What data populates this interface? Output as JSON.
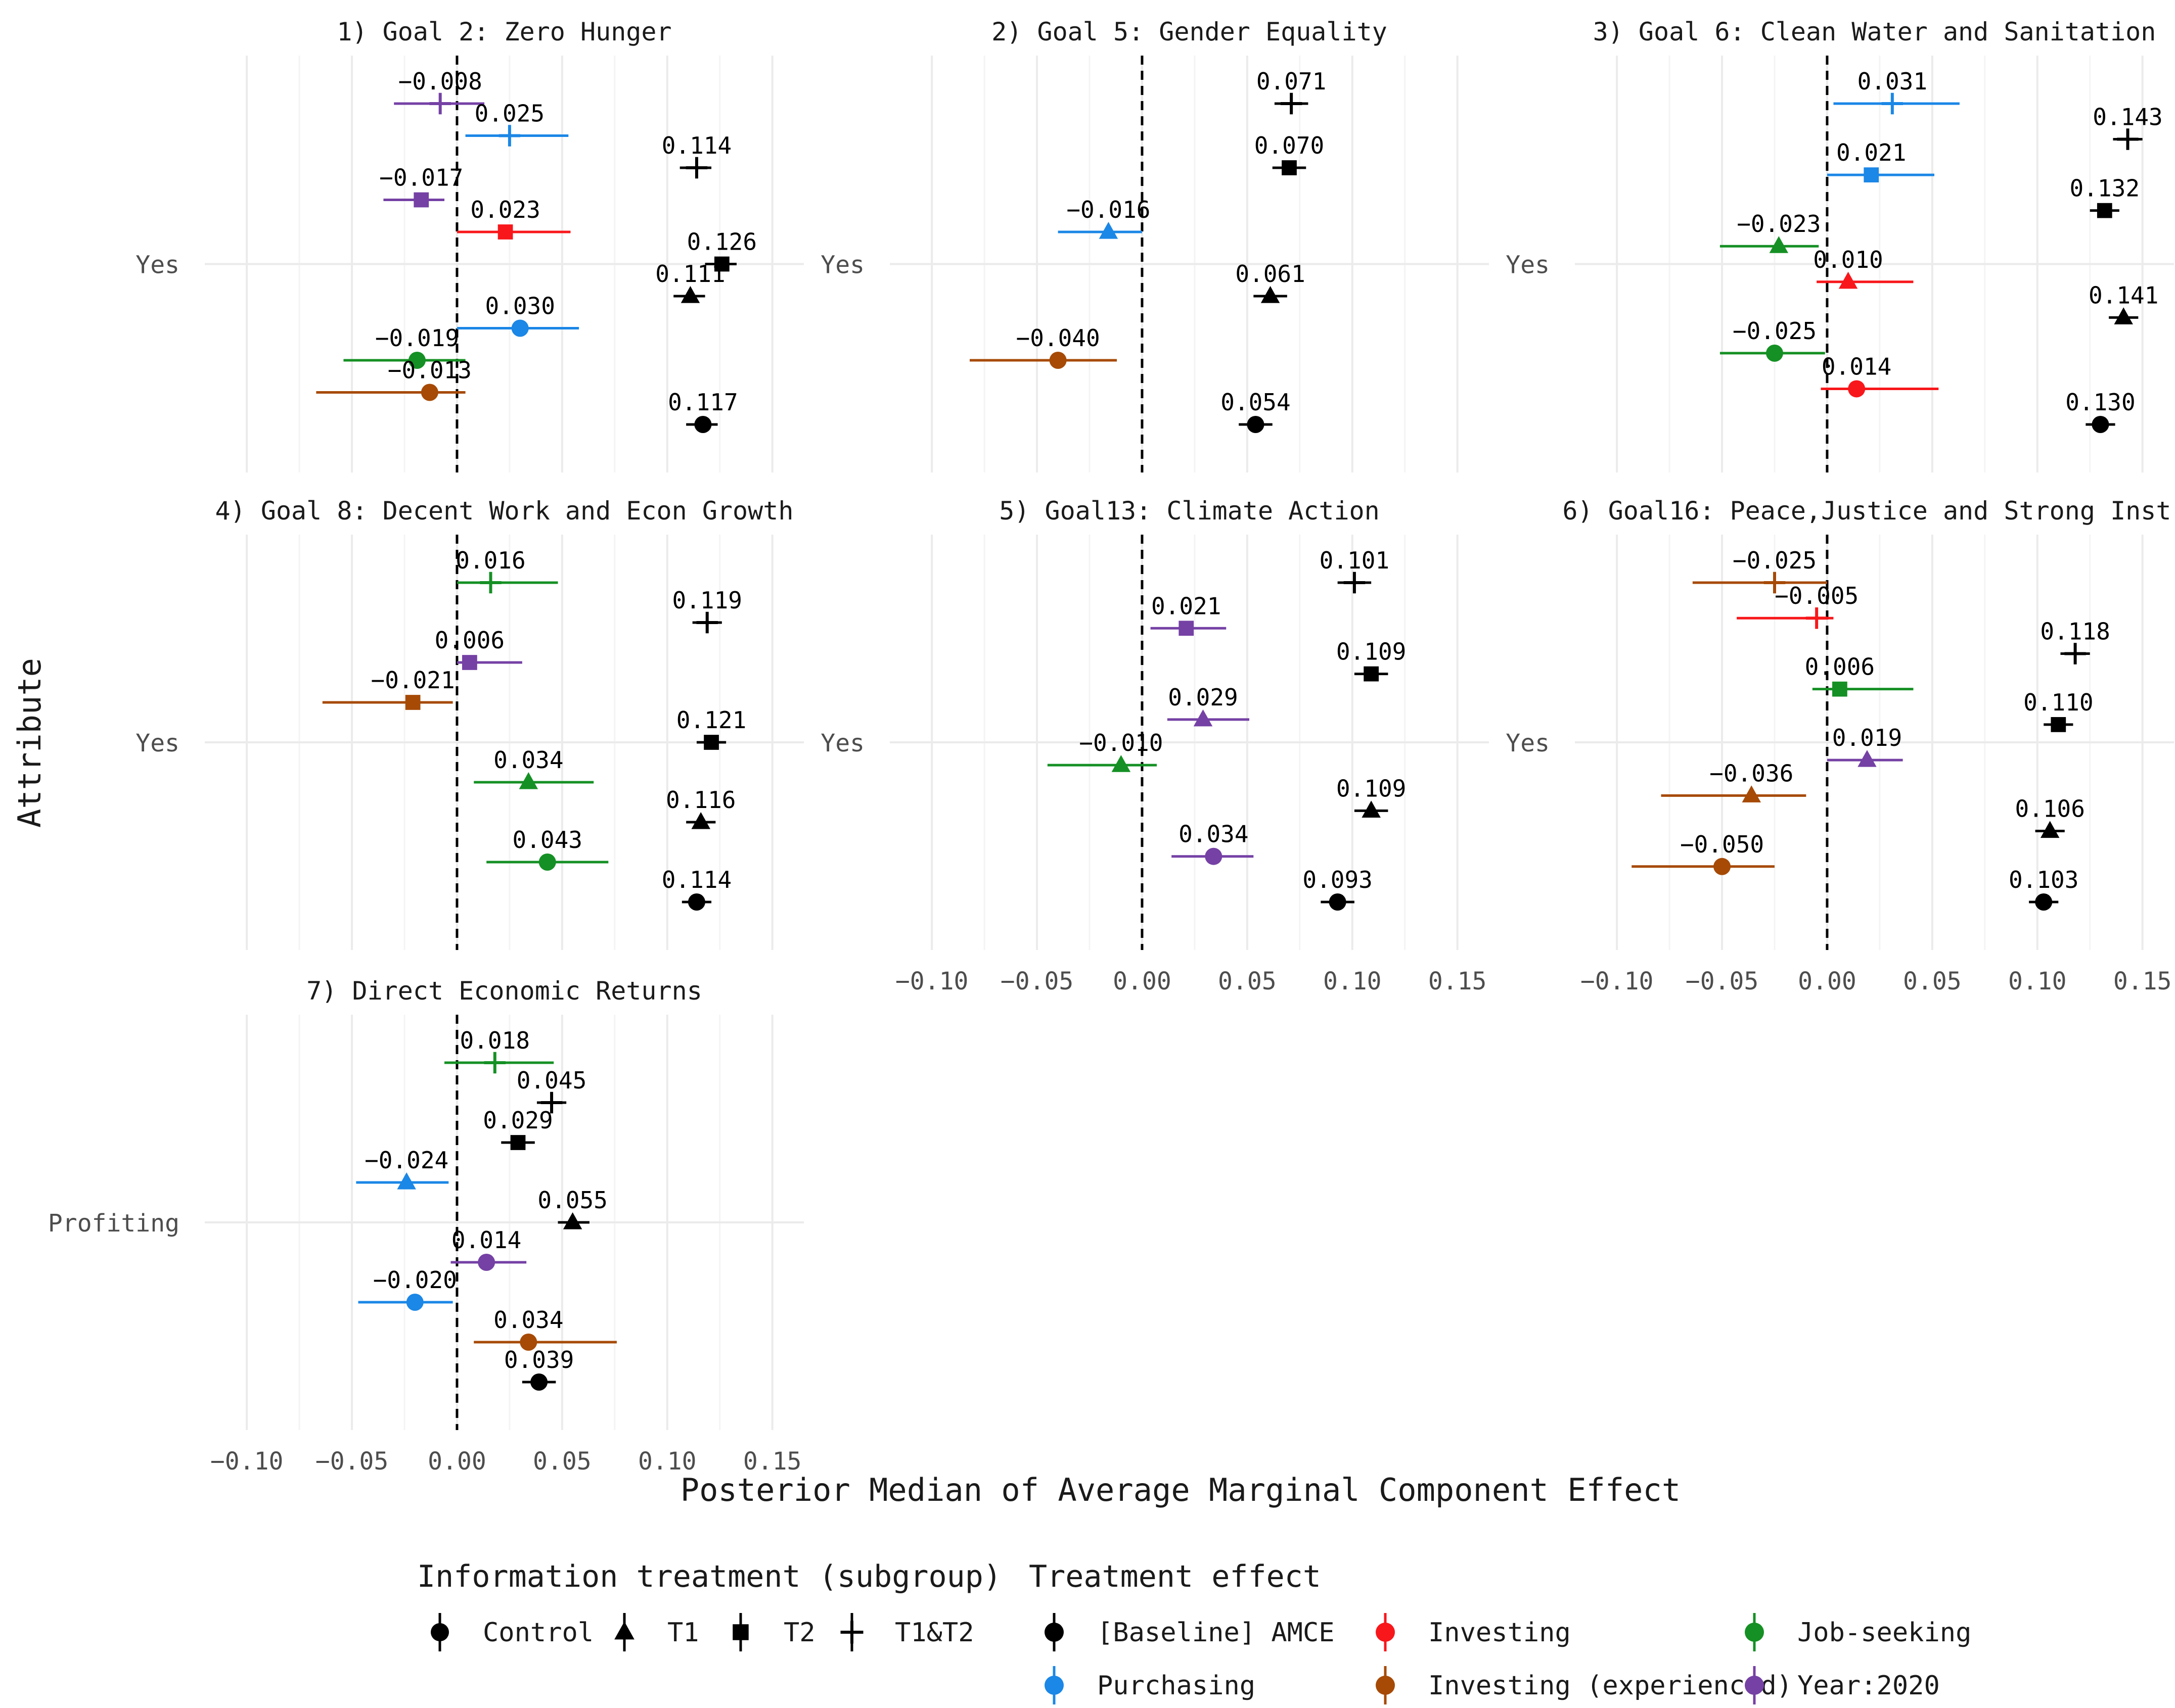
{
  "figure": {
    "ylabel": "Attribute",
    "xlabel": "Posterior Median of Average Marginal Component Effect",
    "xlim": [
      -0.12,
      0.165
    ],
    "xticks": [
      -0.1,
      -0.05,
      0.0,
      0.05,
      0.1,
      0.15
    ],
    "xtick_labels": [
      "−0.10",
      "−0.05",
      "0.00",
      "0.05",
      "0.10",
      "0.15"
    ]
  },
  "legend": {
    "shape_title": "Information treatment (subgroup)",
    "shape_items": [
      {
        "shape": "circle",
        "label": "Control"
      },
      {
        "shape": "triangle",
        "label": "T1"
      },
      {
        "shape": "square",
        "label": "T2"
      },
      {
        "shape": "plus",
        "label": "T1&T2"
      }
    ],
    "color_title": "Treatment effect",
    "color_items": [
      {
        "key": "baseline",
        "label": "[Baseline] AMCE",
        "color": "#000000"
      },
      {
        "key": "investing",
        "label": "Investing",
        "color": "#f8171b"
      },
      {
        "key": "jobseeking",
        "label": "Job-seeking",
        "color": "#159024"
      },
      {
        "key": "purchasing",
        "label": "Purchasing",
        "color": "#1b87e6"
      },
      {
        "key": "invexp",
        "label": "Investing (experienced)",
        "color": "#a64a06"
      },
      {
        "key": "year2020",
        "label": "Year:2020",
        "color": "#7541a5"
      }
    ]
  },
  "chart_data": [
    {
      "type": "scatter",
      "title": "1) Goal 2: Zero Hunger",
      "category": "Yes",
      "points": [
        {
          "group": "year2020",
          "shape": "plus",
          "value": -0.008,
          "label": "−0.008",
          "lo": -0.03,
          "hi": 0.013
        },
        {
          "group": "purchasing",
          "shape": "plus",
          "value": 0.025,
          "label": "0.025",
          "lo": 0.004,
          "hi": 0.053
        },
        {
          "group": "baseline",
          "shape": "plus",
          "value": 0.114,
          "label": "0.114",
          "lo": 0.106,
          "hi": 0.121
        },
        {
          "group": "year2020",
          "shape": "square",
          "value": -0.017,
          "label": "−0.017",
          "lo": -0.035,
          "hi": -0.006
        },
        {
          "group": "investing",
          "shape": "square",
          "value": 0.023,
          "label": "0.023",
          "lo": 0.0,
          "hi": 0.054
        },
        {
          "group": "baseline",
          "shape": "square",
          "value": 0.126,
          "label": "0.126",
          "lo": 0.118,
          "hi": 0.133
        },
        {
          "group": "baseline",
          "shape": "triangle",
          "value": 0.111,
          "label": "0.111",
          "lo": 0.103,
          "hi": 0.118
        },
        {
          "group": "purchasing",
          "shape": "circle",
          "value": 0.03,
          "label": "0.030",
          "lo": 0.0,
          "hi": 0.058
        },
        {
          "group": "jobseeking",
          "shape": "circle",
          "value": -0.019,
          "label": "−0.019",
          "lo": -0.054,
          "hi": 0.004
        },
        {
          "group": "invexp",
          "shape": "circle",
          "value": -0.013,
          "label": "−0.013",
          "lo": -0.067,
          "hi": 0.004
        },
        {
          "group": "baseline",
          "shape": "circle",
          "value": 0.117,
          "label": "0.117",
          "lo": 0.109,
          "hi": 0.124
        }
      ]
    },
    {
      "type": "scatter",
      "title": "2) Goal 5: Gender Equality",
      "category": "Yes",
      "points": [
        {
          "group": "baseline",
          "shape": "plus",
          "value": 0.071,
          "label": "0.071",
          "lo": 0.063,
          "hi": 0.079
        },
        {
          "group": "baseline",
          "shape": "square",
          "value": 0.07,
          "label": "0.070",
          "lo": 0.062,
          "hi": 0.078
        },
        {
          "group": "purchasing",
          "shape": "triangle",
          "value": -0.016,
          "label": "−0.016",
          "lo": -0.04,
          "hi": 0.0
        },
        {
          "group": "baseline",
          "shape": "triangle",
          "value": 0.061,
          "label": "0.061",
          "lo": 0.053,
          "hi": 0.069
        },
        {
          "group": "invexp",
          "shape": "circle",
          "value": -0.04,
          "label": "−0.040",
          "lo": -0.082,
          "hi": -0.012
        },
        {
          "group": "baseline",
          "shape": "circle",
          "value": 0.054,
          "label": "0.054",
          "lo": 0.046,
          "hi": 0.062
        }
      ]
    },
    {
      "type": "scatter",
      "title": "3) Goal 6: Clean Water and Sanitation",
      "category": "Yes",
      "points": [
        {
          "group": "purchasing",
          "shape": "plus",
          "value": 0.031,
          "label": "0.031",
          "lo": 0.003,
          "hi": 0.063
        },
        {
          "group": "baseline",
          "shape": "plus",
          "value": 0.143,
          "label": "0.143",
          "lo": 0.136,
          "hi": 0.15
        },
        {
          "group": "purchasing",
          "shape": "square",
          "value": 0.021,
          "label": "0.021",
          "lo": 0.0,
          "hi": 0.051
        },
        {
          "group": "baseline",
          "shape": "square",
          "value": 0.132,
          "label": "0.132",
          "lo": 0.125,
          "hi": 0.139
        },
        {
          "group": "jobseeking",
          "shape": "triangle",
          "value": -0.023,
          "label": "−0.023",
          "lo": -0.051,
          "hi": -0.004
        },
        {
          "group": "investing",
          "shape": "triangle",
          "value": 0.01,
          "label": "0.010",
          "lo": -0.005,
          "hi": 0.041
        },
        {
          "group": "baseline",
          "shape": "triangle",
          "value": 0.141,
          "label": "0.141",
          "lo": 0.134,
          "hi": 0.148
        },
        {
          "group": "jobseeking",
          "shape": "circle",
          "value": -0.025,
          "label": "−0.025",
          "lo": -0.051,
          "hi": -0.001
        },
        {
          "group": "investing",
          "shape": "circle",
          "value": 0.014,
          "label": "0.014",
          "lo": -0.003,
          "hi": 0.053
        },
        {
          "group": "baseline",
          "shape": "circle",
          "value": 0.13,
          "label": "0.130",
          "lo": 0.123,
          "hi": 0.137
        }
      ]
    },
    {
      "type": "scatter",
      "title": "4) Goal 8: Decent Work and Econ Growth",
      "category": "Yes",
      "points": [
        {
          "group": "jobseeking",
          "shape": "plus",
          "value": 0.016,
          "label": "0.016",
          "lo": 0.0,
          "hi": 0.048
        },
        {
          "group": "baseline",
          "shape": "plus",
          "value": 0.119,
          "label": "0.119",
          "lo": 0.112,
          "hi": 0.126
        },
        {
          "group": "year2020",
          "shape": "square",
          "value": 0.006,
          "label": "0.006",
          "lo": 0.0,
          "hi": 0.031
        },
        {
          "group": "invexp",
          "shape": "square",
          "value": -0.021,
          "label": "−0.021",
          "lo": -0.064,
          "hi": -0.002
        },
        {
          "group": "baseline",
          "shape": "square",
          "value": 0.121,
          "label": "0.121",
          "lo": 0.114,
          "hi": 0.128
        },
        {
          "group": "jobseeking",
          "shape": "triangle",
          "value": 0.034,
          "label": "0.034",
          "lo": 0.008,
          "hi": 0.065
        },
        {
          "group": "baseline",
          "shape": "triangle",
          "value": 0.116,
          "label": "0.116",
          "lo": 0.109,
          "hi": 0.123
        },
        {
          "group": "jobseeking",
          "shape": "circle",
          "value": 0.043,
          "label": "0.043",
          "lo": 0.014,
          "hi": 0.072
        },
        {
          "group": "baseline",
          "shape": "circle",
          "value": 0.114,
          "label": "0.114",
          "lo": 0.107,
          "hi": 0.121
        }
      ]
    },
    {
      "type": "scatter",
      "title": "5) Goal13: Climate Action",
      "category": "Yes",
      "points": [
        {
          "group": "baseline",
          "shape": "plus",
          "value": 0.101,
          "label": "0.101",
          "lo": 0.093,
          "hi": 0.109
        },
        {
          "group": "year2020",
          "shape": "square",
          "value": 0.021,
          "label": "0.021",
          "lo": 0.004,
          "hi": 0.04
        },
        {
          "group": "baseline",
          "shape": "square",
          "value": 0.109,
          "label": "0.109",
          "lo": 0.101,
          "hi": 0.117
        },
        {
          "group": "year2020",
          "shape": "triangle",
          "value": 0.029,
          "label": "0.029",
          "lo": 0.012,
          "hi": 0.051
        },
        {
          "group": "jobseeking",
          "shape": "triangle",
          "value": -0.01,
          "label": "−0.010",
          "lo": -0.045,
          "hi": 0.007
        },
        {
          "group": "baseline",
          "shape": "triangle",
          "value": 0.109,
          "label": "0.109",
          "lo": 0.101,
          "hi": 0.117
        },
        {
          "group": "year2020",
          "shape": "circle",
          "value": 0.034,
          "label": "0.034",
          "lo": 0.014,
          "hi": 0.053
        },
        {
          "group": "baseline",
          "shape": "circle",
          "value": 0.093,
          "label": "0.093",
          "lo": 0.085,
          "hi": 0.101
        }
      ]
    },
    {
      "type": "scatter",
      "title": "6) Goal16: Peace,Justice and Strong Inst.",
      "category": "Yes",
      "points": [
        {
          "group": "invexp",
          "shape": "plus",
          "value": -0.025,
          "label": "−0.025",
          "lo": -0.064,
          "hi": 0.0
        },
        {
          "group": "investing",
          "shape": "plus",
          "value": -0.005,
          "label": "−0.005",
          "lo": -0.043,
          "hi": 0.003
        },
        {
          "group": "baseline",
          "shape": "plus",
          "value": 0.118,
          "label": "0.118",
          "lo": 0.111,
          "hi": 0.125
        },
        {
          "group": "jobseeking",
          "shape": "square",
          "value": 0.006,
          "label": "0.006",
          "lo": -0.007,
          "hi": 0.041
        },
        {
          "group": "baseline",
          "shape": "square",
          "value": 0.11,
          "label": "0.110",
          "lo": 0.103,
          "hi": 0.117
        },
        {
          "group": "year2020",
          "shape": "triangle",
          "value": 0.019,
          "label": "0.019",
          "lo": 0.0,
          "hi": 0.036
        },
        {
          "group": "invexp",
          "shape": "triangle",
          "value": -0.036,
          "label": "−0.036",
          "lo": -0.079,
          "hi": -0.01
        },
        {
          "group": "baseline",
          "shape": "triangle",
          "value": 0.106,
          "label": "0.106",
          "lo": 0.099,
          "hi": 0.113
        },
        {
          "group": "invexp",
          "shape": "circle",
          "value": -0.05,
          "label": "−0.050",
          "lo": -0.093,
          "hi": -0.025
        },
        {
          "group": "baseline",
          "shape": "circle",
          "value": 0.103,
          "label": "0.103",
          "lo": 0.096,
          "hi": 0.11
        }
      ]
    },
    {
      "type": "scatter",
      "title": "7) Direct Economic Returns",
      "category": "Profiting",
      "points": [
        {
          "group": "jobseeking",
          "shape": "plus",
          "value": 0.018,
          "label": "0.018",
          "lo": -0.006,
          "hi": 0.046
        },
        {
          "group": "baseline",
          "shape": "plus",
          "value": 0.045,
          "label": "0.045",
          "lo": 0.038,
          "hi": 0.052
        },
        {
          "group": "baseline",
          "shape": "square",
          "value": 0.029,
          "label": "0.029",
          "lo": 0.021,
          "hi": 0.037
        },
        {
          "group": "purchasing",
          "shape": "triangle",
          "value": -0.024,
          "label": "−0.024",
          "lo": -0.048,
          "hi": -0.004
        },
        {
          "group": "baseline",
          "shape": "triangle",
          "value": 0.055,
          "label": "0.055",
          "lo": 0.048,
          "hi": 0.063
        },
        {
          "group": "year2020",
          "shape": "circle",
          "value": 0.014,
          "label": "0.014",
          "lo": -0.003,
          "hi": 0.033
        },
        {
          "group": "purchasing",
          "shape": "circle",
          "value": -0.02,
          "label": "−0.020",
          "lo": -0.047,
          "hi": -0.002
        },
        {
          "group": "invexp",
          "shape": "circle",
          "value": 0.034,
          "label": "0.034",
          "lo": 0.008,
          "hi": 0.076
        },
        {
          "group": "baseline",
          "shape": "circle",
          "value": 0.039,
          "label": "0.039",
          "lo": 0.031,
          "hi": 0.047
        }
      ]
    }
  ]
}
